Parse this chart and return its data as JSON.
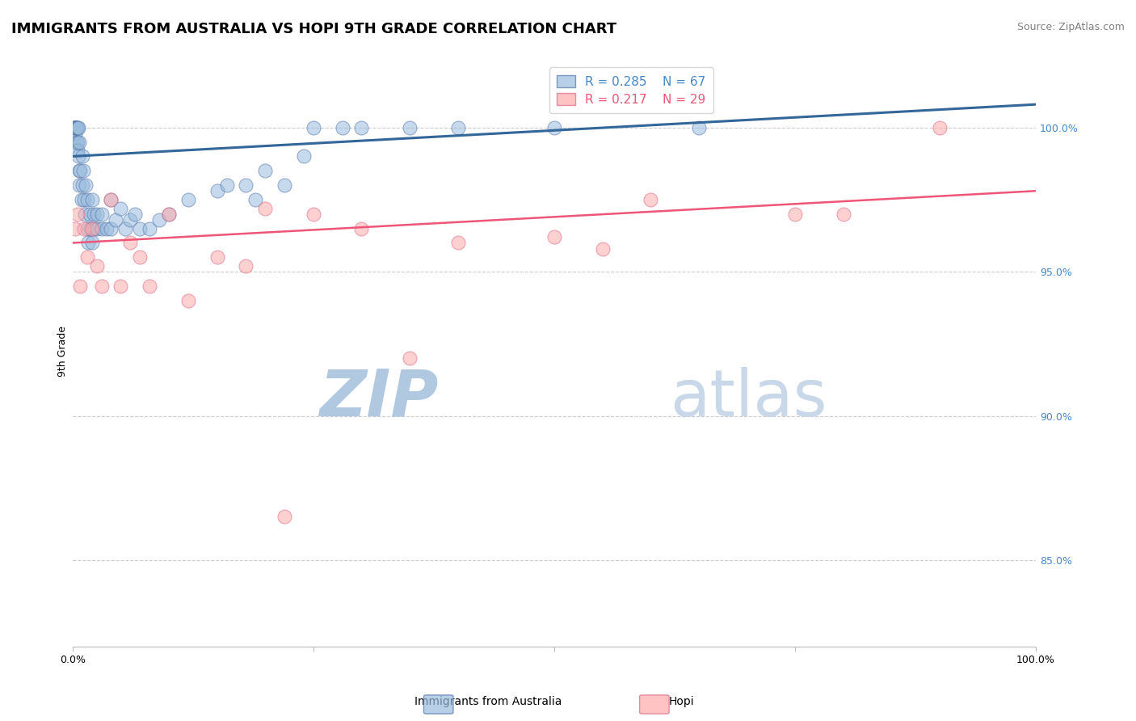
{
  "title": "IMMIGRANTS FROM AUSTRALIA VS HOPI 9TH GRADE CORRELATION CHART",
  "source_text": "Source: ZipAtlas.com",
  "ylabel": "9th Grade",
  "y_ticks": [
    85.0,
    90.0,
    95.0,
    100.0
  ],
  "y_tick_labels": [
    "85.0%",
    "90.0%",
    "95.0%",
    "100.0%"
  ],
  "xlim": [
    0.0,
    100.0
  ],
  "ylim": [
    82.0,
    102.5
  ],
  "legend_r_blue": "R = 0.285",
  "legend_n_blue": "N = 67",
  "legend_r_pink": "R = 0.217",
  "legend_n_pink": "N = 29",
  "blue_color": "#99BBDD",
  "pink_color": "#FFAAAA",
  "blue_edge_color": "#5577AA",
  "pink_edge_color": "#DD6688",
  "blue_line_color": "#336699",
  "pink_line_color": "#EE5577",
  "watermark_zip_color": "#B0C8E0",
  "watermark_atlas_color": "#C8D8E8",
  "grid_color": "#CCCCCC",
  "background_color": "#FFFFFF",
  "title_fontsize": 13,
  "axis_label_fontsize": 9,
  "tick_fontsize": 9,
  "legend_fontsize": 11,
  "source_fontsize": 9,
  "blue_x": [
    0.1,
    0.15,
    0.2,
    0.2,
    0.25,
    0.3,
    0.3,
    0.35,
    0.4,
    0.4,
    0.45,
    0.5,
    0.5,
    0.5,
    0.6,
    0.6,
    0.65,
    0.7,
    0.7,
    0.8,
    0.9,
    1.0,
    1.0,
    1.1,
    1.2,
    1.3,
    1.4,
    1.5,
    1.5,
    1.6,
    1.8,
    1.9,
    2.0,
    2.0,
    2.2,
    2.3,
    2.5,
    2.5,
    3.0,
    3.0,
    3.5,
    4.0,
    4.0,
    4.5,
    5.0,
    5.5,
    6.0,
    6.5,
    7.0,
    8.0,
    9.0,
    10.0,
    12.0,
    15.0,
    16.0,
    18.0,
    19.0,
    20.0,
    22.0,
    24.0,
    25.0,
    28.0,
    30.0,
    35.0,
    40.0,
    50.0,
    65.0
  ],
  "blue_y": [
    100.0,
    100.0,
    100.0,
    99.5,
    100.0,
    100.0,
    99.8,
    100.0,
    100.0,
    99.5,
    100.0,
    100.0,
    99.5,
    99.2,
    100.0,
    99.0,
    98.5,
    99.5,
    98.0,
    98.5,
    97.5,
    99.0,
    98.0,
    98.5,
    97.5,
    97.0,
    98.0,
    96.5,
    97.5,
    96.0,
    97.0,
    96.5,
    97.5,
    96.0,
    97.0,
    96.5,
    97.0,
    96.5,
    96.5,
    97.0,
    96.5,
    97.5,
    96.5,
    96.8,
    97.2,
    96.5,
    96.8,
    97.0,
    96.5,
    96.5,
    96.8,
    97.0,
    97.5,
    97.8,
    98.0,
    98.0,
    97.5,
    98.5,
    98.0,
    99.0,
    100.0,
    100.0,
    100.0,
    100.0,
    100.0,
    100.0,
    100.0
  ],
  "pink_x": [
    0.3,
    0.5,
    0.8,
    1.2,
    1.5,
    2.0,
    2.5,
    3.0,
    4.0,
    5.0,
    6.0,
    7.0,
    8.0,
    10.0,
    12.0,
    15.0,
    18.0,
    20.0,
    22.0,
    25.0,
    30.0,
    35.0,
    40.0,
    50.0,
    55.0,
    60.0,
    75.0,
    80.0,
    90.0
  ],
  "pink_y": [
    96.5,
    97.0,
    94.5,
    96.5,
    95.5,
    96.5,
    95.2,
    94.5,
    97.5,
    94.5,
    96.0,
    95.5,
    94.5,
    97.0,
    94.0,
    95.5,
    95.2,
    97.2,
    86.5,
    97.0,
    96.5,
    92.0,
    96.0,
    96.2,
    95.8,
    97.5,
    97.0,
    97.0,
    100.0
  ],
  "blue_trend": [
    99.0,
    100.8
  ],
  "pink_trend": [
    96.0,
    97.8
  ],
  "x_tick_positions": [
    0,
    25,
    50,
    75,
    100
  ],
  "x_tick_labels": [
    "0.0%",
    "",
    "",
    "",
    "100.0%"
  ]
}
